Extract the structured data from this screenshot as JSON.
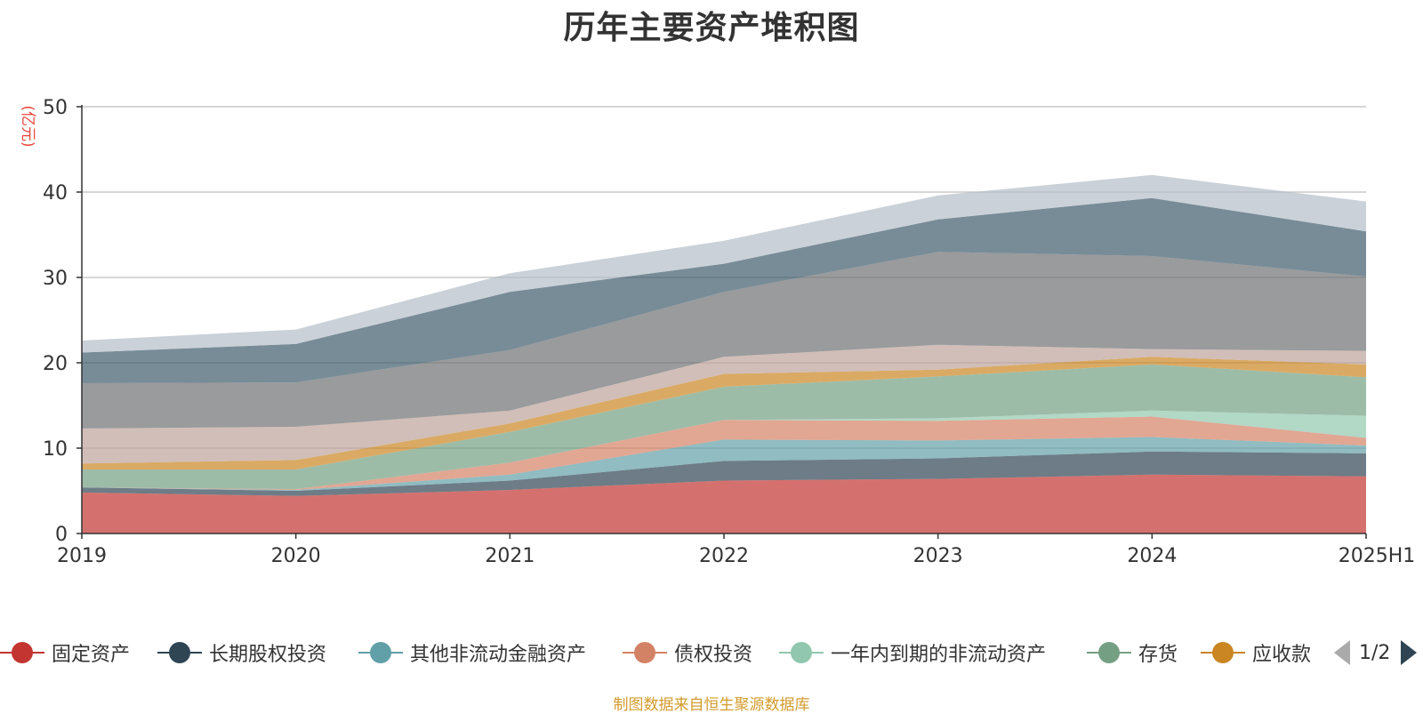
{
  "chart_data": {
    "type": "area",
    "stacked": true,
    "title": "历年主要资产堆积图",
    "ylabel": "(亿元)",
    "xlabel": "",
    "categories": [
      "2019",
      "2020",
      "2021",
      "2022",
      "2023",
      "2024",
      "2025H1"
    ],
    "y_ticks": [
      "0",
      "10",
      "20",
      "30",
      "40",
      "50"
    ],
    "ylim": [
      0,
      50
    ],
    "grid": true,
    "legend_position": "bottom",
    "series": [
      {
        "name": "固定资产",
        "color": "#c23531",
        "values": [
          4.8,
          4.4,
          5.1,
          6.2,
          6.4,
          6.9,
          6.7
        ]
      },
      {
        "name": "长期股权投资",
        "color": "#2f4554",
        "values": [
          0.6,
          0.6,
          1.1,
          2.3,
          2.4,
          2.7,
          2.7
        ]
      },
      {
        "name": "其他非流动金融资产",
        "color": "#61a0a8",
        "values": [
          0.0,
          0.1,
          0.7,
          2.5,
          2.1,
          1.7,
          0.9
        ]
      },
      {
        "name": "债权投资",
        "color": "#d48265",
        "values": [
          0.0,
          0.1,
          1.4,
          2.3,
          2.3,
          2.4,
          0.9
        ]
      },
      {
        "name": "一年内到期的非流动资产",
        "color": "#91c7ae",
        "values": [
          0.0,
          0.0,
          0.0,
          0.0,
          0.3,
          0.7,
          2.6
        ]
      },
      {
        "name": "存货",
        "color": "#749f83",
        "values": [
          2.1,
          2.3,
          3.6,
          3.9,
          4.9,
          5.4,
          4.5
        ]
      },
      {
        "name": "应收款",
        "color": "#ca8622",
        "values": [
          0.7,
          1.1,
          1.0,
          1.5,
          0.8,
          0.9,
          1.5
        ]
      },
      {
        "name": "",
        "color": "#bda29a",
        "values": [
          4.1,
          3.9,
          1.5,
          2.0,
          2.9,
          0.9,
          1.6
        ]
      },
      {
        "name": "",
        "color": "#6e7074",
        "values": [
          5.3,
          5.2,
          7.1,
          7.6,
          10.9,
          10.9,
          8.7
        ]
      },
      {
        "name": "",
        "color": "#3e5b6b",
        "values": [
          3.6,
          4.5,
          6.8,
          3.3,
          3.8,
          6.8,
          5.3
        ]
      },
      {
        "name": "",
        "color": "#b5bdc8",
        "values": [
          1.4,
          1.7,
          2.2,
          2.7,
          2.8,
          2.7,
          3.5
        ]
      }
    ]
  },
  "legend": {
    "page_indicator": "1/2",
    "visible_count": 7
  },
  "source_note": "制图数据来自恒生聚源数据库"
}
